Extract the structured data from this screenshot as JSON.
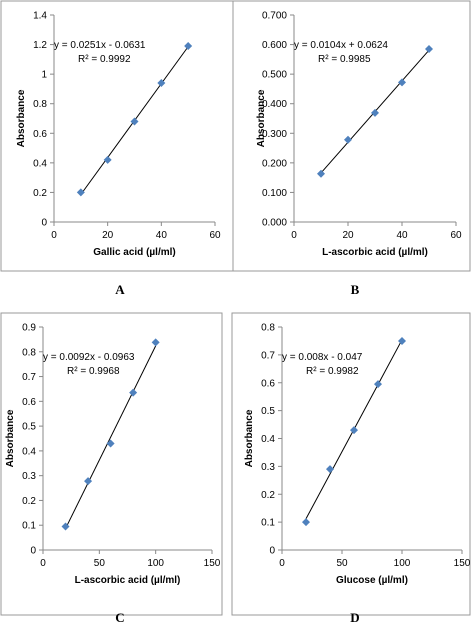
{
  "chart_data": [
    {
      "type": "scatter",
      "label": "A",
      "annotation": [
        "y = 0.0251x - 0.0631",
        "R² = 0.9992"
      ],
      "x_label": "Gallic acid (µl/ml)",
      "y_label": "Absorbance",
      "x": [
        10,
        20,
        30,
        40,
        50
      ],
      "series": [
        {
          "name": "Gallic acid",
          "color": "#4f81bd",
          "values": [
            0.2,
            0.42,
            0.68,
            0.94,
            1.19
          ]
        }
      ],
      "xlim": [
        0,
        60
      ],
      "xticks": [
        0,
        20,
        40,
        60
      ],
      "ylim": [
        0,
        1.4
      ],
      "yticks": [
        0,
        0.2,
        0.4,
        0.6,
        0.8,
        1,
        1.2,
        1.4
      ]
    },
    {
      "type": "scatter",
      "label": "B",
      "annotation": [
        "y = 0.0104x + 0.0624",
        "R² = 0.9985"
      ],
      "x_label": "L-ascorbic acid (µl/ml)",
      "y_label": "Absorbance",
      "x": [
        10,
        20,
        30,
        40,
        50
      ],
      "series": [
        {
          "name": "L-ascorbic acid",
          "color": "#4f81bd",
          "values": [
            0.163,
            0.278,
            0.369,
            0.472,
            0.585
          ]
        }
      ],
      "xlim": [
        0,
        60
      ],
      "xticks": [
        0,
        20,
        40,
        60
      ],
      "ylim": [
        0,
        0.7
      ],
      "yticks": [
        {
          "value": 0,
          "label": "0.000"
        },
        {
          "value": 0.1,
          "label": "0.100"
        },
        {
          "value": 0.2,
          "label": "0.200"
        },
        {
          "value": 0.3,
          "label": "0.300"
        },
        {
          "value": 0.4,
          "label": "0.400"
        },
        {
          "value": 0.5,
          "label": "0.500"
        },
        {
          "value": 0.6,
          "label": "0.600"
        },
        {
          "value": 0.7,
          "label": "0.700"
        }
      ]
    },
    {
      "type": "scatter",
      "label": "C",
      "annotation": [
        "y = 0.0092x - 0.0963",
        "R² = 0.9968"
      ],
      "x_label": "L-ascorbic acid (µl/ml)",
      "y_label": "Absorbance",
      "x": [
        20,
        40,
        60,
        80,
        100
      ],
      "series": [
        {
          "name": "L-ascorbic acid",
          "color": "#4f81bd",
          "values": [
            0.095,
            0.278,
            0.43,
            0.635,
            0.838
          ]
        }
      ],
      "xlim": [
        0,
        150
      ],
      "xticks": [
        0,
        50,
        100,
        150
      ],
      "ylim": [
        0,
        0.9
      ],
      "yticks": [
        0,
        0.1,
        0.2,
        0.3,
        0.4,
        0.5,
        0.6,
        0.7,
        0.8,
        0.9
      ]
    },
    {
      "type": "scatter",
      "label": "D",
      "annotation": [
        "y = 0.008x - 0.047",
        "R² = 0.9982"
      ],
      "x_label": "Glucose (µl/ml)",
      "y_label": "Absorbance",
      "x": [
        20,
        40,
        60,
        80,
        100
      ],
      "series": [
        {
          "name": "Glucose",
          "color": "#4f81bd",
          "values": [
            0.1,
            0.29,
            0.43,
            0.595,
            0.75
          ]
        }
      ],
      "xlim": [
        0,
        150
      ],
      "xticks": [
        0,
        50,
        100,
        150
      ],
      "ylim": [
        0,
        0.8
      ],
      "yticks": [
        0,
        0.1,
        0.2,
        0.3,
        0.4,
        0.5,
        0.6,
        0.7,
        0.8
      ]
    }
  ]
}
